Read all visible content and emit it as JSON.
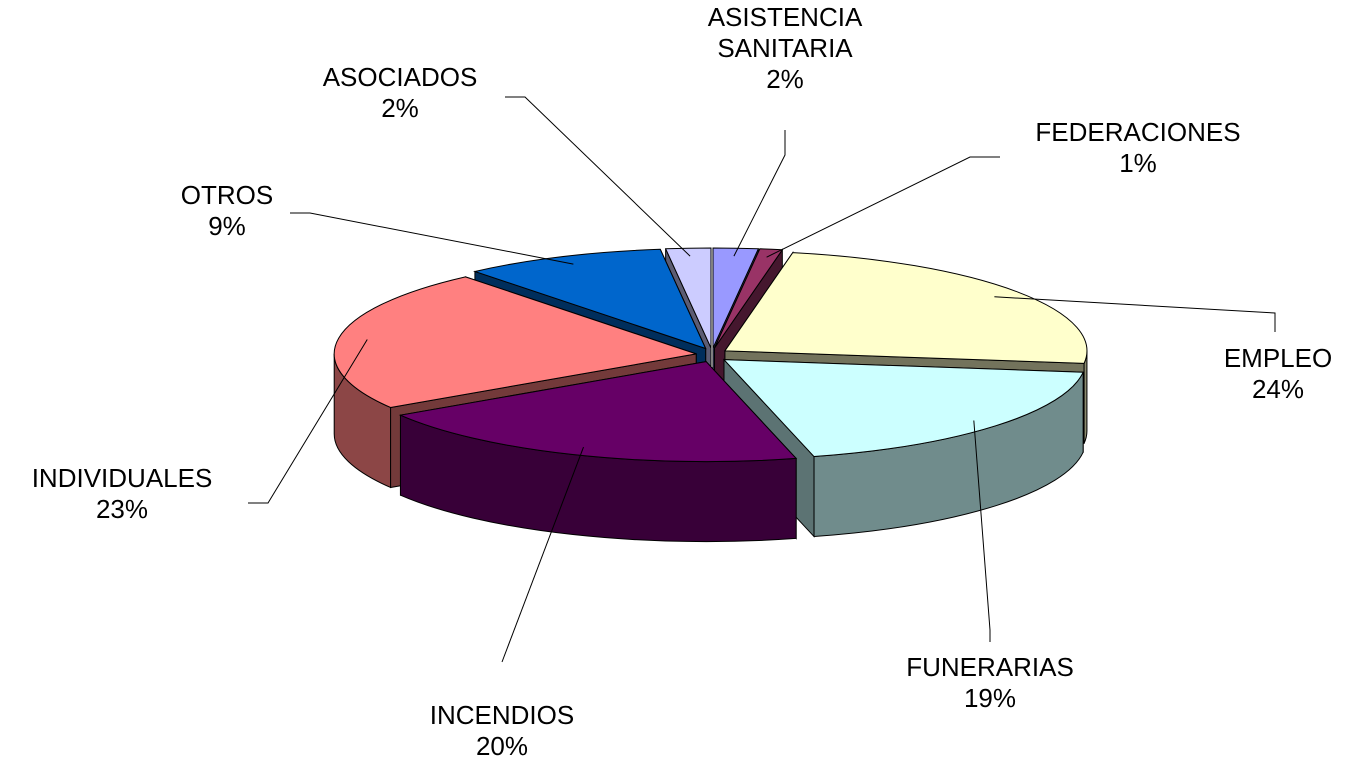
{
  "chart_data": {
    "type": "pie",
    "categories": [
      "ASISTENCIA SANITARIA",
      "FEDERACIONES",
      "EMPLEO",
      "FUNERARIAS",
      "INCENDIOS",
      "INDIVIDUALES",
      "OTROS",
      "ASOCIADOS"
    ],
    "values": [
      2,
      1,
      24,
      19,
      20,
      23,
      9,
      2
    ],
    "value_labels": [
      "2%",
      "1%",
      "24%",
      "19%",
      "20%",
      "23%",
      "9%",
      "2%"
    ],
    "colors": [
      "#9999ff",
      "#993366",
      "#ffffcc",
      "#ccffff",
      "#660066",
      "#ff8080",
      "#0066cc",
      "#ccccff"
    ]
  }
}
